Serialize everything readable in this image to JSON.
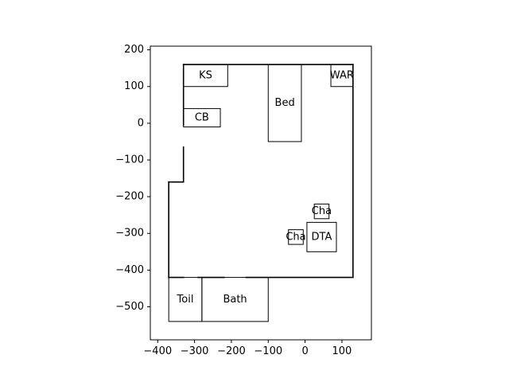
{
  "chart_data": {
    "type": "floor-plan",
    "title": "",
    "xlabel": "",
    "ylabel": "",
    "xlim": [
      -420,
      180
    ],
    "ylim": [
      -590,
      210
    ],
    "grid": false,
    "xticks": [
      -400,
      -300,
      -200,
      -100,
      0,
      100
    ],
    "yticks": [
      200,
      100,
      0,
      -100,
      -200,
      -300,
      -400,
      -500
    ],
    "xtick_labels": [
      "−400",
      "−300",
      "−200",
      "−100",
      "0",
      "100"
    ],
    "ytick_labels": [
      "200",
      "100",
      "0",
      "−100",
      "−200",
      "−300",
      "−400",
      "−500"
    ],
    "walls": [
      {
        "id": "wall-top",
        "points": [
          [
            -330,
            160
          ],
          [
            130,
            160
          ]
        ]
      },
      {
        "id": "wall-right",
        "points": [
          [
            130,
            160
          ],
          [
            130,
            -420
          ]
        ]
      },
      {
        "id": "wall-bottom-right",
        "points": [
          [
            130,
            -420
          ],
          [
            -160,
            -420
          ]
        ]
      },
      {
        "id": "wall-bottom-mid",
        "points": [
          [
            -220,
            -420
          ],
          [
            -290,
            -420
          ]
        ]
      },
      {
        "id": "wall-bottom-left",
        "points": [
          [
            -330,
            -420
          ],
          [
            -370,
            -420
          ]
        ]
      },
      {
        "id": "wall-left-lower",
        "points": [
          [
            -370,
            -420
          ],
          [
            -370,
            -160
          ]
        ]
      },
      {
        "id": "wall-step",
        "points": [
          [
            -370,
            -160
          ],
          [
            -330,
            -160
          ]
        ]
      },
      {
        "id": "wall-left-upper-a",
        "points": [
          [
            -330,
            -160
          ],
          [
            -330,
            -65
          ]
        ]
      },
      {
        "id": "wall-left-upper-b",
        "points": [
          [
            -330,
            -5
          ],
          [
            -330,
            160
          ]
        ]
      }
    ],
    "rooms": [
      {
        "id": "ks",
        "label": "KS",
        "x": -330,
        "y": 100,
        "w": 120,
        "h": 60
      },
      {
        "id": "cb",
        "label": "CB",
        "x": -330,
        "y": -10,
        "w": 100,
        "h": 50
      },
      {
        "id": "bed",
        "label": "Bed",
        "x": -100,
        "y": -50,
        "w": 90,
        "h": 210
      },
      {
        "id": "war",
        "label": "WAR",
        "x": 70,
        "y": 100,
        "w": 60,
        "h": 60
      },
      {
        "id": "cha-1",
        "label": "Cha",
        "x": 25,
        "y": -260,
        "w": 40,
        "h": 40
      },
      {
        "id": "cha-2",
        "label": "Cha",
        "x": -45,
        "y": -330,
        "w": 40,
        "h": 40
      },
      {
        "id": "dta",
        "label": "DTA",
        "x": 5,
        "y": -350,
        "w": 80,
        "h": 80
      },
      {
        "id": "toil",
        "label": "Toil",
        "x": -370,
        "y": -540,
        "w": 90,
        "h": 120
      },
      {
        "id": "bath",
        "label": "Bath",
        "x": -280,
        "y": -540,
        "w": 180,
        "h": 120
      }
    ]
  }
}
